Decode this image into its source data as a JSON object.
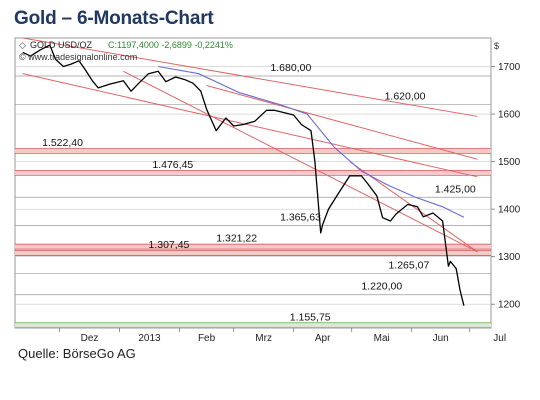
{
  "title": "Gold – 6-Monats-Chart",
  "source": "Quelle: BörseGo AG",
  "chart_data": {
    "type": "line",
    "instrument": "GOLD USD/OZ",
    "quote_label": "C:1197,4000 -2,6899 -0,2241%",
    "watermark": "© www.tradesignalonline.com",
    "currency_label": "$",
    "x_ticks": [
      "Dez",
      "2013",
      "Feb",
      "Mrz",
      "Apr",
      "Mai",
      "Jun",
      "Jul"
    ],
    "y_ticks": [
      1200,
      1300,
      1400,
      1500,
      1600,
      1700
    ],
    "ylim": [
      1150,
      1760
    ],
    "colors": {
      "price": "#000000",
      "ma": "#6b6bd8",
      "trend": "#e06666",
      "level": "#d04848",
      "support": "#6aa84f",
      "quote": "#2e8b2e",
      "grid": "#c8c8c8"
    },
    "price_series": [
      [
        "2012-11-12",
        1730
      ],
      [
        "2012-11-16",
        1722
      ],
      [
        "2012-11-21",
        1735
      ],
      [
        "2012-11-26",
        1745
      ],
      [
        "2012-11-29",
        1715
      ],
      [
        "2012-12-03",
        1700
      ],
      [
        "2012-12-07",
        1705
      ],
      [
        "2012-12-11",
        1712
      ],
      [
        "2012-12-14",
        1695
      ],
      [
        "2012-12-18",
        1670
      ],
      [
        "2012-12-21",
        1655
      ],
      [
        "2012-12-27",
        1663
      ],
      [
        "2013-01-03",
        1670
      ],
      [
        "2013-01-07",
        1648
      ],
      [
        "2013-01-11",
        1665
      ],
      [
        "2013-01-16",
        1685
      ],
      [
        "2013-01-21",
        1690
      ],
      [
        "2013-01-25",
        1668
      ],
      [
        "2013-01-30",
        1678
      ],
      [
        "2013-02-04",
        1672
      ],
      [
        "2013-02-08",
        1665
      ],
      [
        "2013-02-12",
        1648
      ],
      [
        "2013-02-15",
        1610
      ],
      [
        "2013-02-20",
        1565
      ],
      [
        "2013-02-25",
        1592
      ],
      [
        "2013-03-01",
        1575
      ],
      [
        "2013-03-06",
        1578
      ],
      [
        "2013-03-12",
        1585
      ],
      [
        "2013-03-18",
        1608
      ],
      [
        "2013-03-22",
        1608
      ],
      [
        "2013-03-27",
        1603
      ],
      [
        "2013-04-01",
        1598
      ],
      [
        "2013-04-05",
        1578
      ],
      [
        "2013-04-10",
        1565
      ],
      [
        "2013-04-12",
        1500
      ],
      [
        "2013-04-15",
        1350
      ],
      [
        "2013-04-16",
        1368
      ],
      [
        "2013-04-19",
        1400
      ],
      [
        "2013-04-24",
        1432
      ],
      [
        "2013-04-30",
        1470
      ],
      [
        "2013-05-06",
        1470
      ],
      [
        "2013-05-09",
        1455
      ],
      [
        "2013-05-14",
        1428
      ],
      [
        "2013-05-17",
        1382
      ],
      [
        "2013-05-21",
        1375
      ],
      [
        "2013-05-24",
        1390
      ],
      [
        "2013-05-30",
        1410
      ],
      [
        "2013-06-04",
        1405
      ],
      [
        "2013-06-07",
        1384
      ],
      [
        "2013-06-12",
        1392
      ],
      [
        "2013-06-17",
        1375
      ],
      [
        "2013-06-20",
        1280
      ],
      [
        "2013-06-21",
        1290
      ],
      [
        "2013-06-24",
        1275
      ],
      [
        "2013-06-26",
        1230
      ],
      [
        "2013-06-28",
        1197
      ]
    ],
    "ma_series": [
      [
        "2013-01-21",
        1700
      ],
      [
        "2013-02-11",
        1685
      ],
      [
        "2013-03-04",
        1645
      ],
      [
        "2013-03-25",
        1620
      ],
      [
        "2013-04-08",
        1600
      ],
      [
        "2013-04-22",
        1530
      ],
      [
        "2013-05-06",
        1480
      ],
      [
        "2013-05-20",
        1450
      ],
      [
        "2013-06-03",
        1425
      ],
      [
        "2013-06-17",
        1405
      ],
      [
        "2013-06-28",
        1383
      ]
    ],
    "trend_lines": [
      [
        [
          "2012-11-12",
          1760
        ],
        [
          "2013-07-05",
          1595
        ]
      ],
      [
        [
          "2012-11-12",
          1685
        ],
        [
          "2013-07-05",
          1468
        ]
      ],
      [
        [
          "2013-02-15",
          1660
        ],
        [
          "2013-07-05",
          1505
        ]
      ],
      [
        [
          "2013-01-03",
          1690
        ],
        [
          "2013-07-05",
          1310
        ]
      ],
      [
        [
          "2013-04-30",
          1500
        ],
        [
          "2013-07-05",
          1310
        ]
      ]
    ],
    "levels": [
      {
        "value": 1680.0,
        "label": "1.680,00",
        "at": "2013-03-20",
        "style": "line"
      },
      {
        "value": 1620.0,
        "label": "1.620,00",
        "at": "2013-05-18",
        "style": "line"
      },
      {
        "value": 1522.4,
        "label": "1.522,40",
        "at": "2012-11-22",
        "style": "band"
      },
      {
        "value": 1476.45,
        "label": "1.476,45",
        "at": "2013-01-18",
        "style": "band"
      },
      {
        "value": 1425.0,
        "label": "1.425,00",
        "at": "2013-06-13",
        "style": "line"
      },
      {
        "value": 1365.63,
        "label": "1.365,63",
        "at": "2013-03-25",
        "style": "line"
      },
      {
        "value": 1321.22,
        "label": "1.321,22",
        "at": "2013-02-20",
        "style": "band"
      },
      {
        "value": 1307.45,
        "label": "1.307,45",
        "at": "2013-01-16",
        "style": "band"
      },
      {
        "value": 1265.07,
        "label": "1.265,07",
        "at": "2013-05-20",
        "style": "line"
      },
      {
        "value": 1220.0,
        "label": "1.220,00",
        "at": "2013-05-06",
        "style": "line"
      },
      {
        "value": 1155.75,
        "label": "1.155,75",
        "at": "2013-03-30",
        "style": "support"
      }
    ]
  }
}
